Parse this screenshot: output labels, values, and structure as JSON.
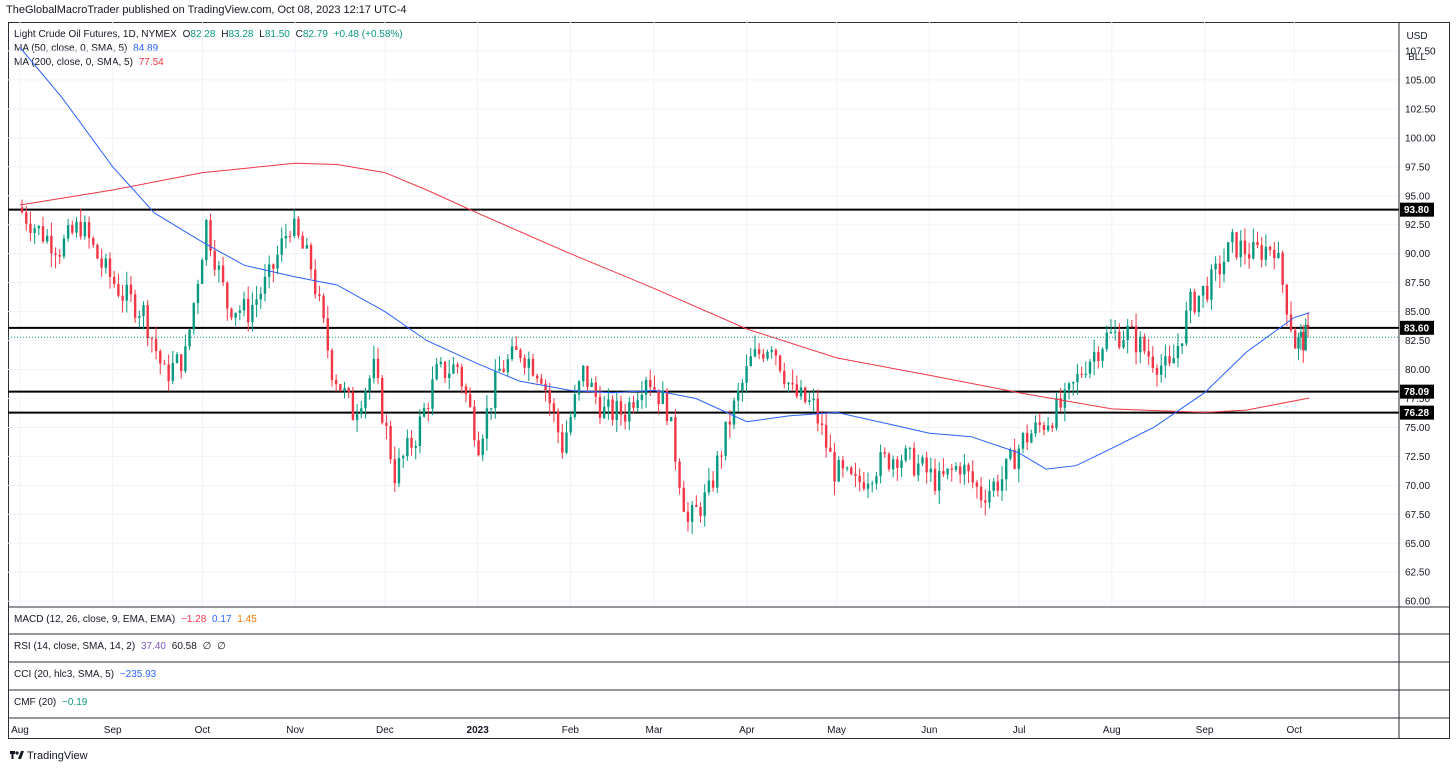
{
  "header": {
    "publisher": "TheGlobalMacroTrader published on TradingView.com, Oct 08, 2023 12:17 UTC-4"
  },
  "legend": {
    "symbol": "Light Crude Oil Futures, 1D, NYMEX",
    "o_label": "O",
    "o_value": "82.28",
    "h_label": "H",
    "h_value": "83.28",
    "l_label": "L",
    "l_value": "81.50",
    "c_label": "C",
    "c_value": "82.79",
    "change": "+0.48 (+0.58%)",
    "ma50_label": "MA (50, close, 0, SMA, 5)",
    "ma50_value": "84.89",
    "ma200_label": "MA (200, close, 0, SMA, 5)",
    "ma200_value": "77.54"
  },
  "scale_box": {
    "currency": "USD",
    "unit": "BLL"
  },
  "indicators": {
    "macd_label": "MACD (12, 26, close, 9, EMA, EMA)",
    "macd_v1": "−1.28",
    "macd_v2": "0.17",
    "macd_v3": "1.45",
    "rsi_label": "RSI (14, close, SMA, 14, 2)",
    "rsi_v1": "37.40",
    "rsi_v2": "60.58",
    "rsi_v3": "∅",
    "rsi_v4": "∅",
    "cci_label": "CCI (20, hlc3, SMA, 5)",
    "cci_v1": "−235.93",
    "cmf_label": "CMF (20)",
    "cmf_v1": "−0.19"
  },
  "footer": {
    "brand": "TradingView",
    "logo_icon": "tradingview-logo-icon"
  },
  "colors": {
    "up": "#089981",
    "down": "#f23645",
    "ma50": "#2962ff",
    "ma200": "#f23645",
    "level": "#000000"
  },
  "chart_data": {
    "type": "candlestick",
    "y_ticks": [
      "60.00",
      "62.50",
      "65.00",
      "67.50",
      "70.00",
      "72.50",
      "75.00",
      "77.50",
      "80.00",
      "82.50",
      "85.00",
      "87.50",
      "90.00",
      "92.50",
      "95.00",
      "97.50",
      "100.00",
      "102.50",
      "105.00",
      "107.50"
    ],
    "ylim": [
      59.5,
      110
    ],
    "x_ticks": [
      "Aug",
      "Sep",
      "Oct",
      "Nov",
      "Dec",
      "2023",
      "Feb",
      "Mar",
      "Apr",
      "May",
      "Jun",
      "Jul",
      "Aug",
      "Sep",
      "Oct"
    ],
    "x_tick_dates": [
      "2022-08-01",
      "2022-09-01",
      "2022-10-01",
      "2022-11-01",
      "2022-12-01",
      "2023-01-01",
      "2023-02-01",
      "2023-03-01",
      "2023-04-01",
      "2023-05-01",
      "2023-06-01",
      "2023-07-01",
      "2023-08-01",
      "2023-09-01",
      "2023-10-01"
    ],
    "levels": [
      {
        "value": 93.8,
        "label": "93.80"
      },
      {
        "value": 83.6,
        "label": "83.60"
      },
      {
        "value": 78.09,
        "label": "78.09"
      },
      {
        "value": 76.28,
        "label": "76.28"
      }
    ],
    "last_price": 82.79,
    "closes": [
      {
        "date": "2022-08-01",
        "close": 94.0
      },
      {
        "date": "2022-08-08",
        "close": 92.0
      },
      {
        "date": "2022-08-15",
        "close": 90.5
      },
      {
        "date": "2022-08-22",
        "close": 92.5
      },
      {
        "date": "2022-08-29",
        "close": 89.0
      },
      {
        "date": "2022-09-05",
        "close": 86.5
      },
      {
        "date": "2022-09-12",
        "close": 85.0
      },
      {
        "date": "2022-09-19",
        "close": 79.5
      },
      {
        "date": "2022-09-26",
        "close": 81.2
      },
      {
        "date": "2022-10-03",
        "close": 92.6
      },
      {
        "date": "2022-10-10",
        "close": 85.6
      },
      {
        "date": "2022-10-17",
        "close": 85.0
      },
      {
        "date": "2022-10-24",
        "close": 87.9
      },
      {
        "date": "2022-10-31",
        "close": 92.6
      },
      {
        "date": "2022-11-07",
        "close": 88.9
      },
      {
        "date": "2022-11-14",
        "close": 80.1
      },
      {
        "date": "2022-11-21",
        "close": 76.3
      },
      {
        "date": "2022-11-28",
        "close": 80.0
      },
      {
        "date": "2022-12-05",
        "close": 71.0
      },
      {
        "date": "2022-12-12",
        "close": 74.3
      },
      {
        "date": "2022-12-19",
        "close": 79.6
      },
      {
        "date": "2022-12-26",
        "close": 80.3
      },
      {
        "date": "2023-01-02",
        "close": 73.8
      },
      {
        "date": "2023-01-09",
        "close": 79.9
      },
      {
        "date": "2023-01-16",
        "close": 81.6
      },
      {
        "date": "2023-01-23",
        "close": 79.7
      },
      {
        "date": "2023-01-30",
        "close": 73.4
      },
      {
        "date": "2023-02-06",
        "close": 79.7
      },
      {
        "date": "2023-02-13",
        "close": 76.3
      },
      {
        "date": "2023-02-20",
        "close": 76.3
      },
      {
        "date": "2023-02-27",
        "close": 79.7
      },
      {
        "date": "2023-03-06",
        "close": 76.7
      },
      {
        "date": "2023-03-13",
        "close": 66.7
      },
      {
        "date": "2023-03-20",
        "close": 69.3
      },
      {
        "date": "2023-03-27",
        "close": 75.7
      },
      {
        "date": "2023-04-03",
        "close": 80.7
      },
      {
        "date": "2023-04-10",
        "close": 82.5
      },
      {
        "date": "2023-04-17",
        "close": 77.9
      },
      {
        "date": "2023-04-24",
        "close": 76.8
      },
      {
        "date": "2023-05-01",
        "close": 71.3
      },
      {
        "date": "2023-05-08",
        "close": 70.0
      },
      {
        "date": "2023-05-15",
        "close": 71.7
      },
      {
        "date": "2023-05-22",
        "close": 72.7
      },
      {
        "date": "2023-05-29",
        "close": 71.7
      },
      {
        "date": "2023-06-05",
        "close": 70.2
      },
      {
        "date": "2023-06-12",
        "close": 71.8
      },
      {
        "date": "2023-06-19",
        "close": 69.2
      },
      {
        "date": "2023-06-26",
        "close": 70.6
      },
      {
        "date": "2023-07-03",
        "close": 73.9
      },
      {
        "date": "2023-07-10",
        "close": 75.4
      },
      {
        "date": "2023-07-17",
        "close": 77.1
      },
      {
        "date": "2023-07-24",
        "close": 80.6
      },
      {
        "date": "2023-07-31",
        "close": 82.8
      },
      {
        "date": "2023-08-07",
        "close": 83.2
      },
      {
        "date": "2023-08-14",
        "close": 81.3
      },
      {
        "date": "2023-08-21",
        "close": 79.8
      },
      {
        "date": "2023-08-28",
        "close": 85.6
      },
      {
        "date": "2023-09-04",
        "close": 87.5
      },
      {
        "date": "2023-09-11",
        "close": 90.8
      },
      {
        "date": "2023-09-18",
        "close": 90.0
      },
      {
        "date": "2023-09-25",
        "close": 90.8
      },
      {
        "date": "2023-10-02",
        "close": 82.3
      },
      {
        "date": "2023-10-06",
        "close": 82.8
      }
    ],
    "ma50": [
      {
        "date": "2022-08-01",
        "value": 107.8
      },
      {
        "date": "2022-08-15",
        "value": 103.5
      },
      {
        "date": "2022-09-01",
        "value": 97.5
      },
      {
        "date": "2022-09-15",
        "value": 93.5
      },
      {
        "date": "2022-10-01",
        "value": 91.0
      },
      {
        "date": "2022-10-15",
        "value": 89.0
      },
      {
        "date": "2022-11-01",
        "value": 88.0
      },
      {
        "date": "2022-11-15",
        "value": 87.3
      },
      {
        "date": "2022-12-01",
        "value": 85.0
      },
      {
        "date": "2022-12-15",
        "value": 82.5
      },
      {
        "date": "2023-01-01",
        "value": 80.5
      },
      {
        "date": "2023-01-15",
        "value": 79.0
      },
      {
        "date": "2023-02-01",
        "value": 78.2
      },
      {
        "date": "2023-02-15",
        "value": 78.0
      },
      {
        "date": "2023-03-01",
        "value": 78.2
      },
      {
        "date": "2023-03-15",
        "value": 77.5
      },
      {
        "date": "2023-04-01",
        "value": 75.5
      },
      {
        "date": "2023-04-15",
        "value": 76.0
      },
      {
        "date": "2023-05-01",
        "value": 76.3
      },
      {
        "date": "2023-05-15",
        "value": 75.5
      },
      {
        "date": "2023-06-01",
        "value": 74.5
      },
      {
        "date": "2023-06-15",
        "value": 74.2
      },
      {
        "date": "2023-07-01",
        "value": 72.8
      },
      {
        "date": "2023-07-10",
        "value": 71.4
      },
      {
        "date": "2023-07-20",
        "value": 71.7
      },
      {
        "date": "2023-08-01",
        "value": 73.2
      },
      {
        "date": "2023-08-15",
        "value": 75.0
      },
      {
        "date": "2023-09-01",
        "value": 78.0
      },
      {
        "date": "2023-09-15",
        "value": 81.5
      },
      {
        "date": "2023-10-01",
        "value": 84.5
      },
      {
        "date": "2023-10-06",
        "value": 84.89
      }
    ],
    "ma200": [
      {
        "date": "2022-08-01",
        "value": 94.2
      },
      {
        "date": "2022-09-01",
        "value": 95.5
      },
      {
        "date": "2022-10-01",
        "value": 97.0
      },
      {
        "date": "2022-11-01",
        "value": 97.8
      },
      {
        "date": "2022-11-15",
        "value": 97.7
      },
      {
        "date": "2022-12-01",
        "value": 97.0
      },
      {
        "date": "2022-12-15",
        "value": 95.5
      },
      {
        "date": "2023-01-01",
        "value": 93.5
      },
      {
        "date": "2023-02-01",
        "value": 90.0
      },
      {
        "date": "2023-03-01",
        "value": 87.0
      },
      {
        "date": "2023-04-01",
        "value": 83.5
      },
      {
        "date": "2023-05-01",
        "value": 81.0
      },
      {
        "date": "2023-06-01",
        "value": 79.5
      },
      {
        "date": "2023-07-01",
        "value": 78.0
      },
      {
        "date": "2023-08-01",
        "value": 76.6
      },
      {
        "date": "2023-09-01",
        "value": 76.3
      },
      {
        "date": "2023-09-15",
        "value": 76.5
      },
      {
        "date": "2023-10-06",
        "value": 77.54
      }
    ]
  }
}
